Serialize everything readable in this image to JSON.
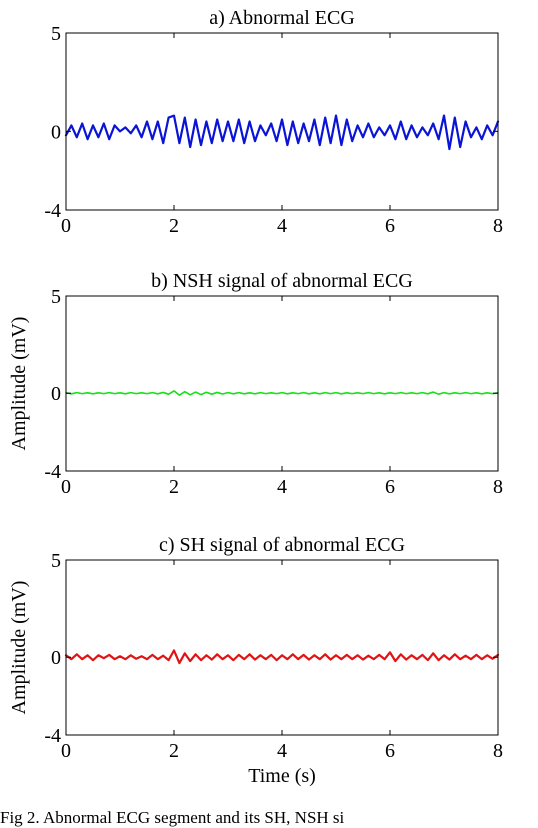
{
  "chart_data": [
    {
      "type": "line",
      "title": "a) Abnormal ECG",
      "xlabel": "",
      "ylabel": "",
      "xlim": [
        0,
        8
      ],
      "ylim": [
        -4,
        5
      ],
      "xticks": [
        "0",
        "2",
        "4",
        "6",
        "8"
      ],
      "yticks": [
        "-4",
        "0",
        "5"
      ],
      "grid": false,
      "series": [
        {
          "color": "#0a14d6",
          "x": [
            0,
            0.1,
            0.2,
            0.3,
            0.4,
            0.5,
            0.6,
            0.7,
            0.8,
            0.9,
            1.0,
            1.1,
            1.2,
            1.3,
            1.4,
            1.5,
            1.6,
            1.7,
            1.8,
            1.9,
            2.0,
            2.1,
            2.2,
            2.3,
            2.4,
            2.5,
            2.6,
            2.7,
            2.8,
            2.9,
            3.0,
            3.1,
            3.2,
            3.3,
            3.4,
            3.5,
            3.6,
            3.7,
            3.8,
            3.9,
            4.0,
            4.1,
            4.2,
            4.3,
            4.4,
            4.5,
            4.6,
            4.7,
            4.8,
            4.9,
            5.0,
            5.1,
            5.2,
            5.3,
            5.4,
            5.5,
            5.6,
            5.7,
            5.8,
            5.9,
            6.0,
            6.1,
            6.2,
            6.3,
            6.4,
            6.5,
            6.6,
            6.7,
            6.8,
            6.9,
            7.0,
            7.1,
            7.2,
            7.3,
            7.4,
            7.5,
            7.6,
            7.7,
            7.8,
            7.9,
            8.0
          ],
          "y": [
            -0.2,
            0.3,
            -0.3,
            0.4,
            -0.4,
            0.3,
            -0.3,
            0.4,
            -0.4,
            0.3,
            0.0,
            0.2,
            -0.1,
            0.3,
            -0.3,
            0.5,
            -0.4,
            0.5,
            -0.6,
            0.7,
            0.8,
            -0.6,
            0.7,
            -0.8,
            0.6,
            -0.7,
            0.5,
            -0.6,
            0.6,
            -0.5,
            0.5,
            -0.5,
            0.6,
            -0.6,
            0.5,
            -0.5,
            0.3,
            -0.2,
            0.4,
            -0.5,
            0.6,
            -0.7,
            0.5,
            -0.6,
            0.4,
            -0.5,
            0.6,
            -0.7,
            0.7,
            -0.6,
            0.8,
            -0.7,
            0.6,
            -0.5,
            0.3,
            -0.3,
            0.4,
            -0.3,
            0.2,
            -0.2,
            0.3,
            -0.4,
            0.5,
            -0.4,
            0.3,
            -0.3,
            0.2,
            -0.2,
            0.4,
            -0.4,
            0.8,
            -0.9,
            0.7,
            -0.8,
            0.5,
            -0.3,
            0.2,
            -0.4,
            0.3,
            -0.2,
            0.5
          ]
        }
      ]
    },
    {
      "type": "line",
      "title": "b) NSH signal of abnormal ECG",
      "xlabel": "",
      "ylabel": "Amplitude (mV)",
      "xlim": [
        0,
        8
      ],
      "ylim": [
        -4,
        5
      ],
      "xticks": [
        "0",
        "2",
        "4",
        "6",
        "8"
      ],
      "yticks": [
        "-4",
        "0",
        "5"
      ],
      "grid": false,
      "series": [
        {
          "color": "#16e016",
          "x": [
            0,
            0.1,
            0.2,
            0.3,
            0.4,
            0.5,
            0.6,
            0.7,
            0.8,
            0.9,
            1.0,
            1.1,
            1.2,
            1.3,
            1.4,
            1.5,
            1.6,
            1.7,
            1.8,
            1.9,
            2.0,
            2.1,
            2.2,
            2.3,
            2.4,
            2.5,
            2.6,
            2.7,
            2.8,
            2.9,
            3.0,
            3.1,
            3.2,
            3.3,
            3.4,
            3.5,
            3.6,
            3.7,
            3.8,
            3.9,
            4.0,
            4.1,
            4.2,
            4.3,
            4.4,
            4.5,
            4.6,
            4.7,
            4.8,
            4.9,
            5.0,
            5.1,
            5.2,
            5.3,
            5.4,
            5.5,
            5.6,
            5.7,
            5.8,
            5.9,
            6.0,
            6.1,
            6.2,
            6.3,
            6.4,
            6.5,
            6.6,
            6.7,
            6.8,
            6.9,
            7.0,
            7.1,
            7.2,
            7.3,
            7.4,
            7.5,
            7.6,
            7.7,
            7.8,
            7.9,
            8.0
          ],
          "y": [
            0.02,
            -0.03,
            0.03,
            -0.02,
            0.02,
            -0.03,
            0.02,
            -0.02,
            0.03,
            -0.02,
            0.02,
            -0.03,
            0.03,
            -0.02,
            0.02,
            -0.02,
            0.03,
            -0.03,
            0.04,
            -0.05,
            0.12,
            -0.1,
            0.08,
            -0.08,
            0.06,
            -0.07,
            0.05,
            -0.05,
            0.04,
            -0.04,
            0.03,
            -0.03,
            0.03,
            -0.03,
            0.02,
            -0.03,
            0.03,
            -0.02,
            0.02,
            -0.02,
            0.03,
            -0.03,
            0.02,
            -0.02,
            0.03,
            -0.03,
            0.02,
            -0.03,
            0.03,
            -0.02,
            0.03,
            -0.03,
            0.02,
            -0.02,
            0.02,
            -0.02,
            0.03,
            -0.02,
            0.02,
            -0.03,
            0.02,
            -0.02,
            0.03,
            -0.02,
            0.02,
            -0.02,
            0.03,
            -0.03,
            0.06,
            -0.05,
            0.03,
            -0.03,
            0.02,
            -0.02,
            0.03,
            -0.02,
            0.02,
            -0.03,
            0.02,
            -0.02,
            0.02
          ]
        }
      ]
    },
    {
      "type": "line",
      "title": "c) SH signal of abnormal ECG",
      "xlabel": "Time (s)",
      "ylabel": "Amplitude (mV)",
      "xlim": [
        0,
        8
      ],
      "ylim": [
        -4,
        5
      ],
      "xticks": [
        "0",
        "2",
        "4",
        "6",
        "8"
      ],
      "yticks": [
        "-4",
        "0",
        "5"
      ],
      "grid": false,
      "series": [
        {
          "color": "#e01414",
          "x": [
            0,
            0.1,
            0.2,
            0.3,
            0.4,
            0.5,
            0.6,
            0.7,
            0.8,
            0.9,
            1.0,
            1.1,
            1.2,
            1.3,
            1.4,
            1.5,
            1.6,
            1.7,
            1.8,
            1.9,
            2.0,
            2.1,
            2.2,
            2.3,
            2.4,
            2.5,
            2.6,
            2.7,
            2.8,
            2.9,
            3.0,
            3.1,
            3.2,
            3.3,
            3.4,
            3.5,
            3.6,
            3.7,
            3.8,
            3.9,
            4.0,
            4.1,
            4.2,
            4.3,
            4.4,
            4.5,
            4.6,
            4.7,
            4.8,
            4.9,
            5.0,
            5.1,
            5.2,
            5.3,
            5.4,
            5.5,
            5.6,
            5.7,
            5.8,
            5.9,
            6.0,
            6.1,
            6.2,
            6.3,
            6.4,
            6.5,
            6.6,
            6.7,
            6.8,
            6.9,
            7.0,
            7.1,
            7.2,
            7.3,
            7.4,
            7.5,
            7.6,
            7.7,
            7.8,
            7.9,
            8.0
          ],
          "y": [
            0.1,
            -0.1,
            0.15,
            -0.1,
            0.1,
            -0.15,
            0.1,
            -0.05,
            0.12,
            -0.1,
            0.05,
            -0.1,
            0.1,
            -0.08,
            0.05,
            -0.1,
            0.12,
            -0.1,
            0.08,
            -0.15,
            0.35,
            -0.3,
            0.2,
            -0.2,
            0.15,
            -0.15,
            0.1,
            -0.12,
            0.15,
            -0.1,
            0.1,
            -0.15,
            0.12,
            -0.1,
            0.15,
            -0.12,
            0.1,
            -0.1,
            0.12,
            -0.15,
            0.1,
            -0.1,
            0.15,
            -0.1,
            0.12,
            -0.12,
            0.1,
            -0.1,
            0.15,
            -0.12,
            0.1,
            -0.1,
            0.12,
            -0.1,
            0.1,
            -0.12,
            0.08,
            -0.1,
            0.12,
            -0.1,
            0.25,
            -0.2,
            0.15,
            -0.12,
            0.1,
            -0.1,
            0.12,
            -0.15,
            0.2,
            -0.15,
            0.1,
            -0.12,
            0.15,
            -0.1,
            0.08,
            -0.1,
            0.12,
            -0.1,
            0.1,
            -0.08,
            0.12
          ]
        }
      ]
    }
  ],
  "caption": "Fig 2. Abnormal ECG segment and its SH, NSH si"
}
